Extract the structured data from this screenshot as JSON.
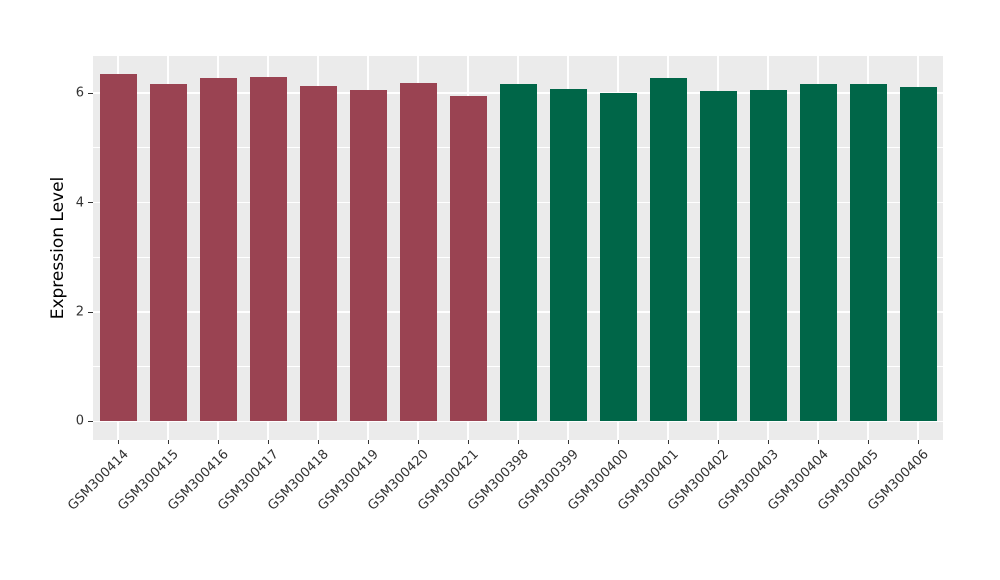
{
  "chart_data": {
    "type": "bar",
    "title": "",
    "xlabel": "",
    "ylabel": "Expression Level",
    "categories": [
      "GSM300414",
      "GSM300415",
      "GSM300416",
      "GSM300417",
      "GSM300418",
      "GSM300419",
      "GSM300420",
      "GSM300421",
      "GSM300398",
      "GSM300399",
      "GSM300400",
      "GSM300401",
      "GSM300402",
      "GSM300403",
      "GSM300404",
      "GSM300405",
      "GSM300406"
    ],
    "values": [
      6.36,
      6.17,
      6.27,
      6.29,
      6.14,
      6.05,
      6.19,
      5.94,
      6.16,
      6.08,
      6.01,
      6.27,
      6.04,
      6.06,
      6.16,
      6.17,
      6.12
    ],
    "bar_colors": [
      "#9A4352",
      "#9A4352",
      "#9A4352",
      "#9A4352",
      "#9A4352",
      "#9A4352",
      "#9A4352",
      "#9A4352",
      "#006648",
      "#006648",
      "#006648",
      "#006648",
      "#006648",
      "#006648",
      "#006648",
      "#006648",
      "#006648"
    ],
    "groups": [
      {
        "label": "GSM300414-GSM300421",
        "color": "#9A4352",
        "count": 8
      },
      {
        "label": "GSM300398-GSM300406",
        "color": "#006648",
        "count": 9
      }
    ],
    "ylim": [
      -0.34,
      6.68
    ],
    "yticks": [
      0,
      2,
      4,
      6
    ],
    "ytick_labels": [
      "0",
      "2",
      "4",
      "6"
    ],
    "yminor": [
      1,
      3,
      5
    ],
    "grid": true,
    "legend": "none",
    "panel_background": "#EBEBEB",
    "gridline_color": "#FFFFFF",
    "tick_color": "#333333",
    "tick_label_color": "#333333",
    "axis_title_color": "#000000"
  }
}
